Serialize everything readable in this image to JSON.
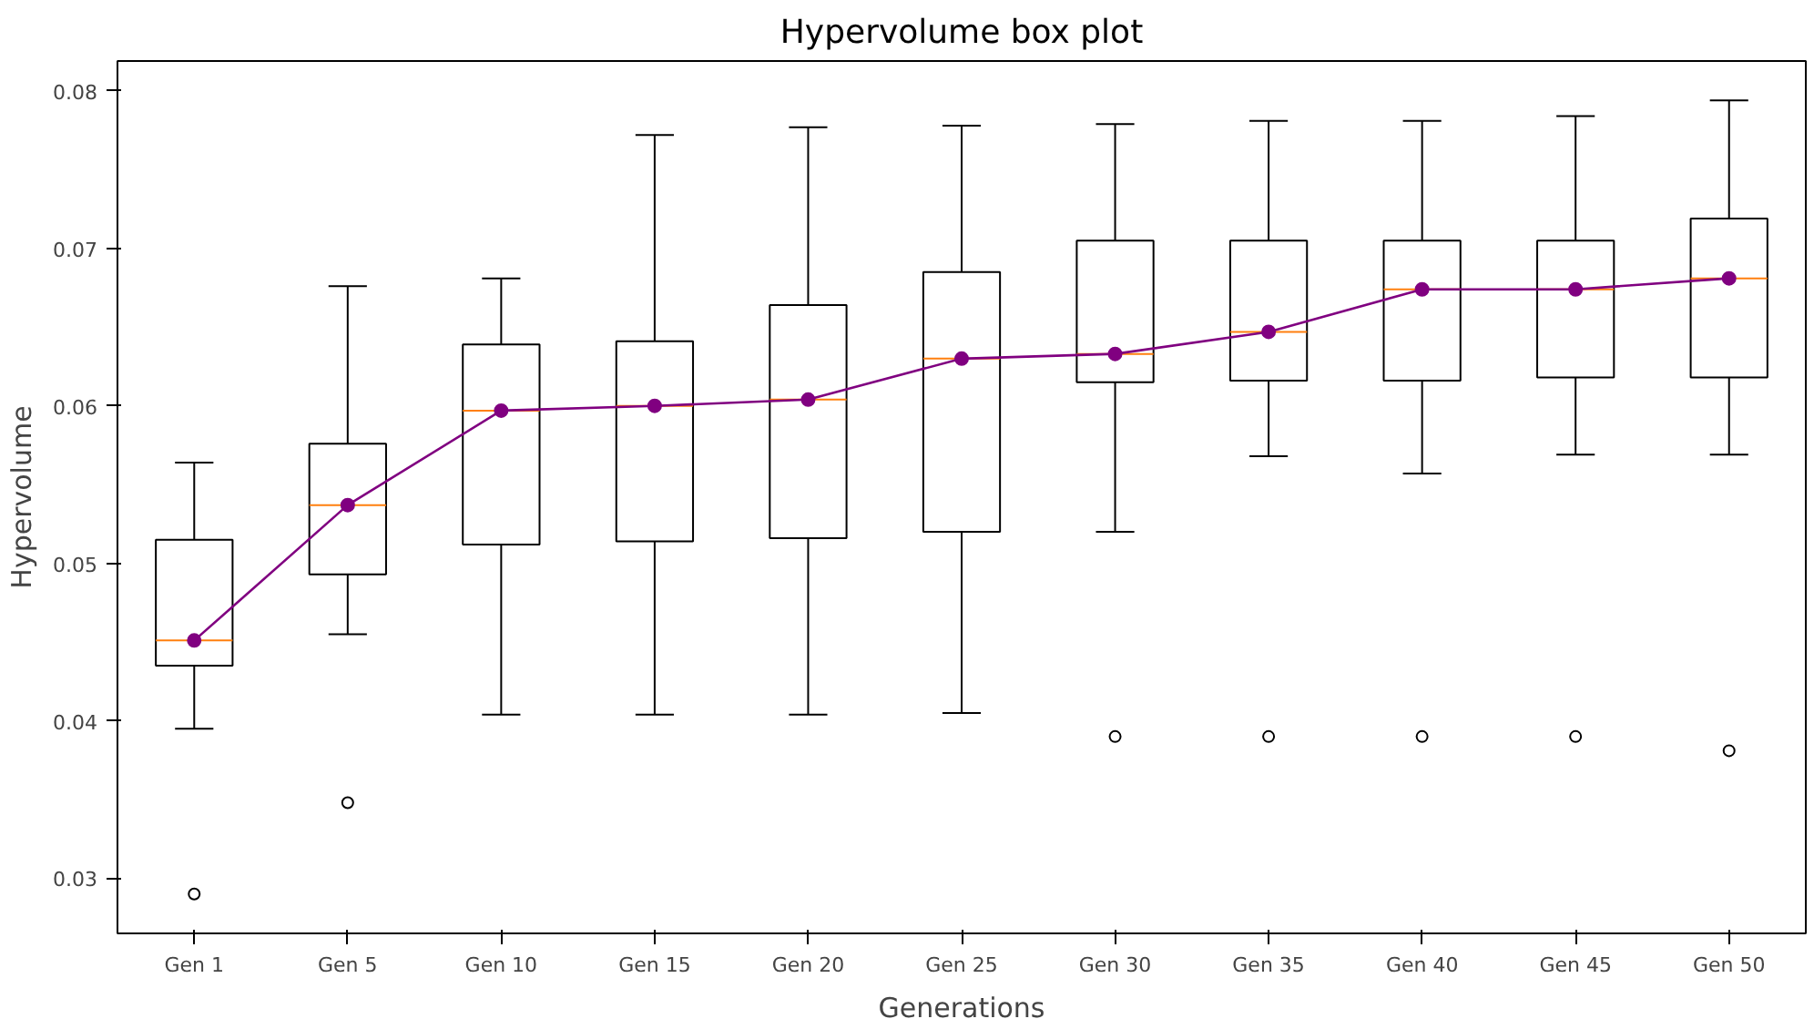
{
  "chart_data": {
    "type": "box",
    "title": "Hypervolume box plot",
    "xlabel": "Generations",
    "ylabel": "Hypervolume",
    "categories": [
      "Gen 1",
      "Gen 5",
      "Gen 10",
      "Gen 15",
      "Gen 20",
      "Gen 25",
      "Gen 30",
      "Gen 35",
      "Gen 40",
      "Gen 45",
      "Gen 50"
    ],
    "ylim": [
      0.0265,
      0.0819
    ],
    "yticks": [
      0.03,
      0.04,
      0.05,
      0.06,
      0.07,
      0.08
    ],
    "marker": "circle",
    "series": [
      {
        "color": "#000000",
        "boxes": [
          {
            "low": 0.0395,
            "q1": 0.0435,
            "median": 0.0451,
            "q3": 0.0515,
            "high": 0.0564,
            "outliers": [
              0.029
            ]
          },
          {
            "low": 0.0455,
            "q1": 0.0493,
            "median": 0.0537,
            "q3": 0.0576,
            "high": 0.0676,
            "outliers": [
              0.0348
            ]
          },
          {
            "low": 0.0404,
            "q1": 0.0512,
            "median": 0.0597,
            "q3": 0.0639,
            "high": 0.0681
          },
          {
            "low": 0.0404,
            "q1": 0.0514,
            "median": 0.06,
            "q3": 0.0641,
            "high": 0.0772
          },
          {
            "low": 0.0404,
            "q1": 0.0516,
            "median": 0.0604,
            "q3": 0.0664,
            "high": 0.0777
          },
          {
            "low": 0.0405,
            "q1": 0.052,
            "median": 0.063,
            "q3": 0.0685,
            "high": 0.0778
          },
          {
            "low": 0.052,
            "q1": 0.0615,
            "median": 0.0633,
            "q3": 0.0705,
            "high": 0.0779,
            "outliers": [
              0.039
            ]
          },
          {
            "low": 0.0568,
            "q1": 0.0616,
            "median": 0.0647,
            "q3": 0.0705,
            "high": 0.0781,
            "outliers": [
              0.039
            ]
          },
          {
            "low": 0.0557,
            "q1": 0.0616,
            "median": 0.0674,
            "q3": 0.0705,
            "high": 0.0781,
            "outliers": [
              0.039
            ]
          },
          {
            "low": 0.0569,
            "q1": 0.0618,
            "median": 0.0674,
            "q3": 0.0705,
            "high": 0.0784,
            "outliers": [
              0.039
            ]
          },
          {
            "low": 0.0569,
            "q1": 0.0618,
            "median": 0.0681,
            "q3": 0.0719,
            "high": 0.0794,
            "outliers": [
              0.0381
            ]
          }
        ]
      },
      {
        "type": "line",
        "color": "#800080",
        "values": [
          0.0451,
          0.0537,
          0.0597,
          0.06,
          0.0604,
          0.063,
          0.0633,
          0.0647,
          0.0674,
          0.0674,
          0.0681
        ]
      }
    ]
  }
}
